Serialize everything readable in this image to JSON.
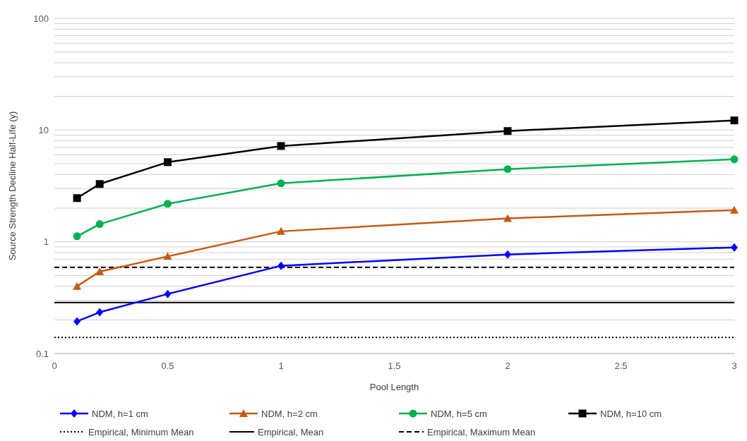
{
  "chart_data": {
    "type": "line",
    "xlabel": "Pool Length",
    "ylabel": "Source Strength Decline Half-Life (y)",
    "x": [
      0.1,
      0.2,
      0.5,
      1,
      2,
      3
    ],
    "log": "y",
    "xlim": [
      0,
      3
    ],
    "ylim": [
      0.1,
      100
    ],
    "xticks": [
      0,
      0.5,
      1,
      1.5,
      2,
      2.5,
      3
    ],
    "yticks": [
      0.1,
      {
        "value": 0.2,
        "label": null
      },
      {
        "value": 0.3,
        "label": null
      },
      {
        "value": 0.4,
        "label": null
      },
      {
        "value": 0.5,
        "label": null
      },
      {
        "value": 0.6,
        "label": null
      },
      {
        "value": 0.7,
        "label": null
      },
      {
        "value": 0.8,
        "label": null
      },
      {
        "value": 0.9,
        "label": null
      },
      1,
      {
        "value": 2,
        "label": null
      },
      {
        "value": 3,
        "label": null
      },
      {
        "value": 4,
        "label": null
      },
      {
        "value": 5,
        "label": null
      },
      {
        "value": 6,
        "label": null
      },
      {
        "value": 7,
        "label": null
      },
      {
        "value": 8,
        "label": null
      },
      {
        "value": 9,
        "label": null
      },
      10,
      {
        "value": 20,
        "label": null
      },
      {
        "value": 30,
        "label": null
      },
      {
        "value": 40,
        "label": null
      },
      {
        "value": 50,
        "label": null
      },
      {
        "value": 60,
        "label": null
      },
      {
        "value": 70,
        "label": null
      },
      {
        "value": 80,
        "label": null
      },
      {
        "value": 90,
        "label": null
      },
      100
    ],
    "grid": "y",
    "legend": "bottom",
    "series": [
      {
        "name": "NDM, h=1 cm",
        "color": "#0000ff",
        "marker": "diamond",
        "values": [
          0.194,
          0.234,
          0.341,
          0.61,
          0.77,
          0.89
        ]
      },
      {
        "name": "NDM, h=2 cm",
        "color": "#c55a11",
        "marker": "triangle",
        "values": [
          0.4,
          0.54,
          0.74,
          1.24,
          1.62,
          1.92
        ]
      },
      {
        "name": "NDM, h=5 cm",
        "color": "#00b050",
        "marker": "circle",
        "values": [
          1.12,
          1.44,
          2.19,
          3.34,
          4.47,
          5.47
        ]
      },
      {
        "name": "NDM, h=10 cm",
        "color": "#000000",
        "marker": "square",
        "values": [
          2.46,
          3.29,
          5.16,
          7.2,
          9.8,
          12.2
        ]
      }
    ],
    "ref_lines": [
      {
        "axis": "y",
        "value": 0.139,
        "label": "Empirical, Minimum Mean",
        "color": "#000000",
        "line_style": "dotted"
      },
      {
        "axis": "y",
        "value": 0.286,
        "label": "Empirical, Mean",
        "color": "#000000",
        "line_style": "solid"
      },
      {
        "axis": "y",
        "value": 0.59,
        "label": "Empirical, Maximum Mean",
        "color": "#000000",
        "line_style": "dashed"
      }
    ]
  }
}
